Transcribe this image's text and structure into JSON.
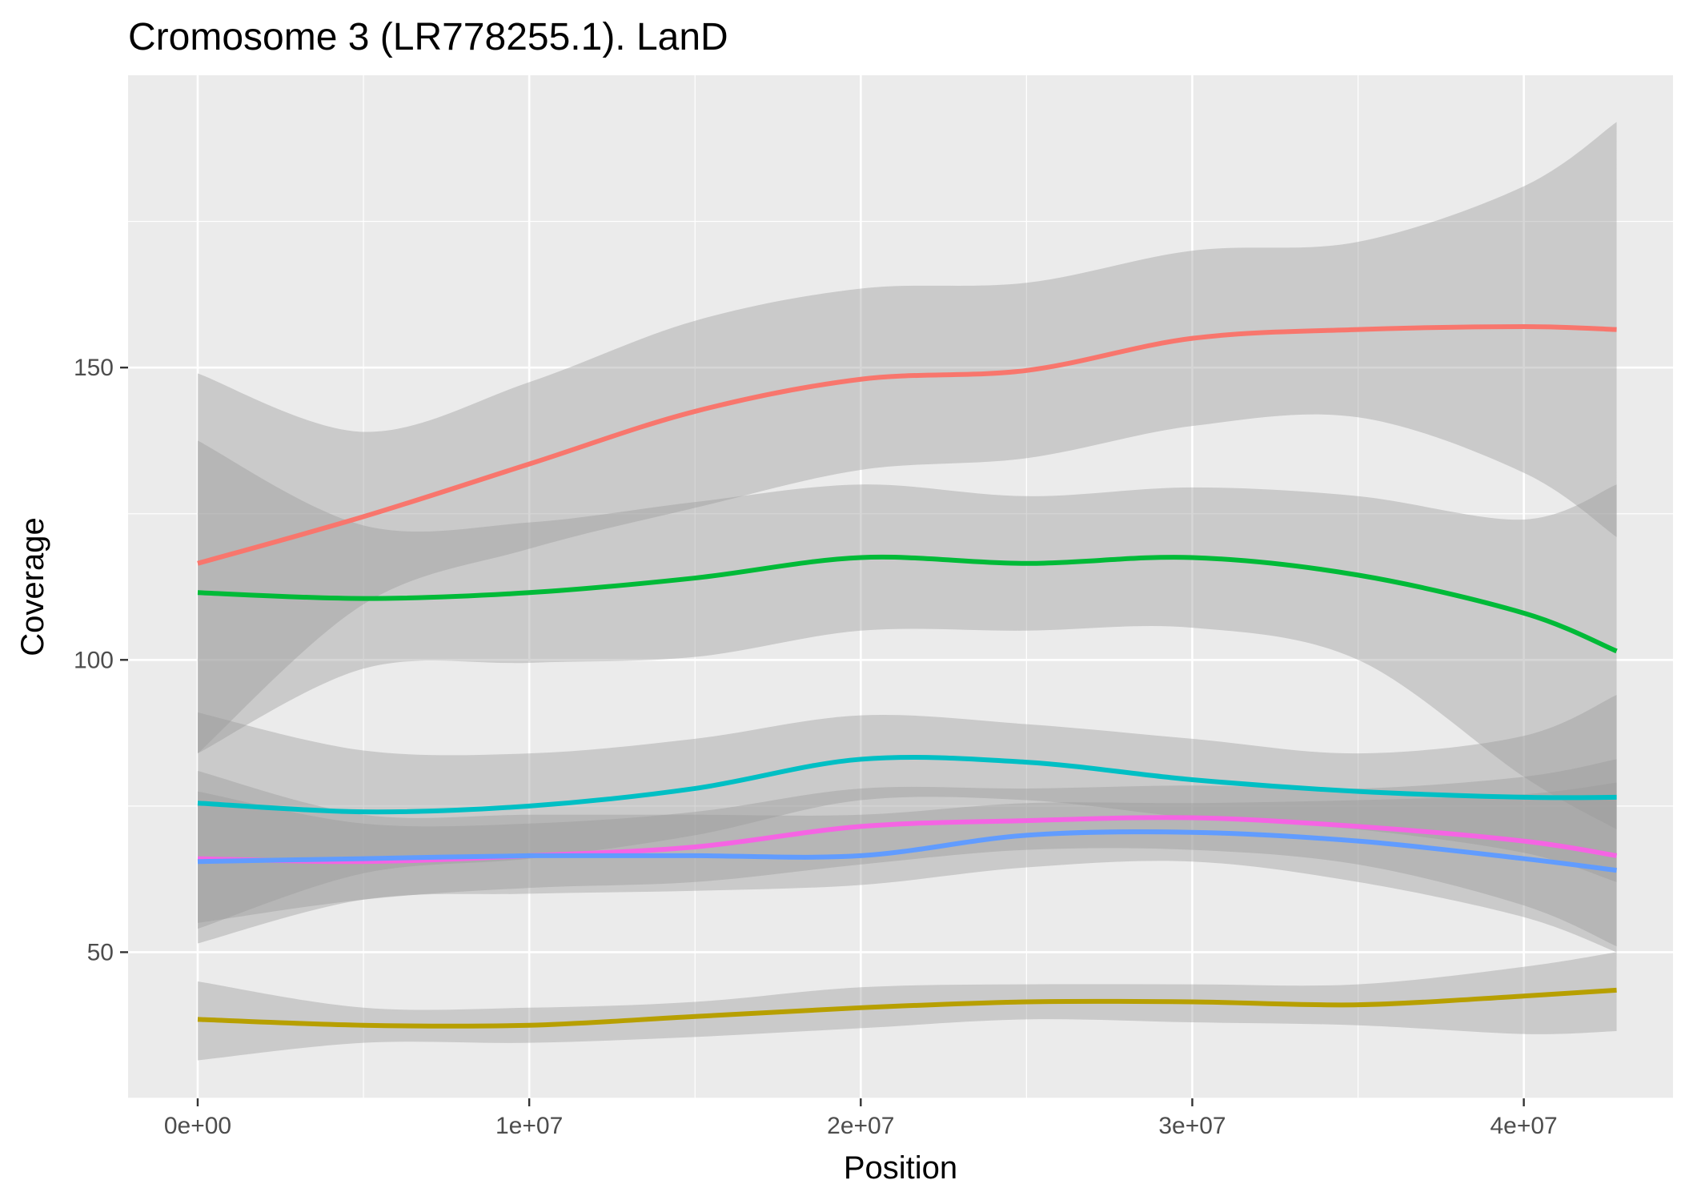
{
  "chart_data": {
    "type": "line",
    "title": "Cromosome 3 (LR778255.1). LanD",
    "xlabel": "Position",
    "ylabel": "Coverage",
    "xlim": [
      -2100000,
      44500000
    ],
    "ylim": [
      25,
      200
    ],
    "x_ticks": [
      {
        "value": 0,
        "label": "0e+00"
      },
      {
        "value": 10000000,
        "label": "1e+07"
      },
      {
        "value": 20000000,
        "label": "2e+07"
      },
      {
        "value": 30000000,
        "label": "3e+07"
      },
      {
        "value": 40000000,
        "label": "4e+07"
      }
    ],
    "y_ticks": [
      {
        "value": 50,
        "label": "50"
      },
      {
        "value": 100,
        "label": "100"
      },
      {
        "value": 150,
        "label": "150"
      }
    ],
    "grid": true,
    "legend": "none",
    "x": [
      0,
      5000000,
      10000000,
      15000000,
      20000000,
      25000000,
      30000000,
      35000000,
      40000000,
      42800000
    ],
    "series": [
      {
        "color": "#F8766D",
        "values": [
          116.5,
          124.5,
          133.5,
          142.5,
          148.0,
          149.5,
          155.0,
          156.5,
          157.0,
          156.5
        ],
        "lower": [
          84.0,
          109.5,
          119.0,
          126.0,
          132.5,
          134.5,
          140.0,
          141.5,
          132.0,
          121.0
        ],
        "upper": [
          149.0,
          139.0,
          147.5,
          158.0,
          163.5,
          164.5,
          170.0,
          171.5,
          181.0,
          192.0
        ]
      },
      {
        "color": "#00BA38",
        "values": [
          111.5,
          110.5,
          111.5,
          114.0,
          117.5,
          116.5,
          117.5,
          114.5,
          108.0,
          101.5
        ],
        "lower": [
          84.0,
          98.5,
          99.5,
          100.5,
          105.0,
          105.0,
          105.5,
          100.0,
          80.0,
          71.0
        ],
        "upper": [
          137.5,
          123.0,
          123.5,
          127.0,
          130.0,
          128.0,
          129.5,
          128.0,
          124.0,
          130.0
        ]
      },
      {
        "color": "#00BFC4",
        "values": [
          75.5,
          74.0,
          75.0,
          78.0,
          83.0,
          82.5,
          79.5,
          77.5,
          76.5,
          76.5
        ],
        "lower": [
          54.0,
          63.5,
          66.0,
          70.0,
          76.0,
          76.0,
          73.0,
          71.0,
          67.0,
          62.0
        ],
        "upper": [
          91.0,
          84.5,
          84.0,
          86.5,
          90.5,
          89.0,
          86.5,
          84.0,
          87.0,
          94.0
        ]
      },
      {
        "color": "#F564E3",
        "values": [
          66.0,
          65.5,
          66.5,
          68.0,
          71.5,
          72.5,
          73.0,
          71.5,
          69.0,
          66.5
        ],
        "lower": [
          55.0,
          59.0,
          61.0,
          62.0,
          65.0,
          67.5,
          67.5,
          65.0,
          58.0,
          51.0
        ],
        "upper": [
          77.5,
          72.0,
          72.0,
          74.0,
          78.0,
          78.0,
          78.5,
          78.0,
          80.0,
          83.0
        ]
      },
      {
        "color": "#619CFF",
        "values": [
          65.5,
          66.0,
          66.5,
          66.5,
          66.5,
          70.0,
          70.5,
          69.0,
          66.0,
          64.0
        ],
        "lower": [
          51.5,
          59.0,
          60.0,
          60.5,
          61.5,
          64.5,
          65.5,
          62.0,
          56.0,
          50.0
        ],
        "upper": [
          81.0,
          73.5,
          73.5,
          73.5,
          73.5,
          75.5,
          75.5,
          76.0,
          77.0,
          79.0
        ]
      },
      {
        "color": "#B79F00",
        "values": [
          38.5,
          37.5,
          37.5,
          39.0,
          40.5,
          41.5,
          41.5,
          41.0,
          42.5,
          43.5
        ],
        "lower": [
          31.5,
          34.5,
          34.5,
          35.5,
          37.0,
          38.5,
          38.0,
          37.5,
          36.0,
          36.5
        ],
        "upper": [
          45.0,
          40.5,
          40.5,
          41.5,
          44.0,
          44.5,
          44.5,
          44.5,
          47.5,
          50.0
        ]
      }
    ]
  }
}
